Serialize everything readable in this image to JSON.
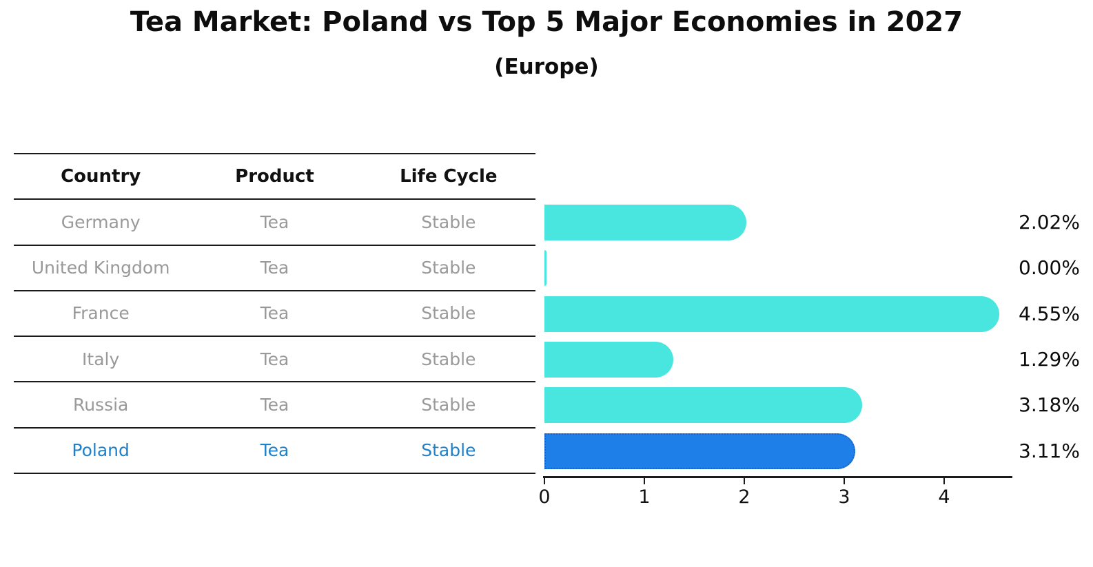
{
  "title": "Tea Market: Poland vs Top 5 Major Economies in 2027",
  "subtitle": "(Europe)",
  "table": {
    "headers": [
      "Country",
      "Product",
      "Life Cycle"
    ],
    "rows": [
      {
        "country": "Germany",
        "product": "Tea",
        "life_cycle": "Stable",
        "highlighted": false
      },
      {
        "country": "United Kingdom",
        "product": "Tea",
        "life_cycle": "Stable",
        "highlighted": false
      },
      {
        "country": "France",
        "product": "Tea",
        "life_cycle": "Stable",
        "highlighted": false
      },
      {
        "country": "Italy",
        "product": "Tea",
        "life_cycle": "Stable",
        "highlighted": false
      },
      {
        "country": "Russia",
        "product": "Tea",
        "life_cycle": "Stable",
        "highlighted": false
      },
      {
        "country": "Poland",
        "product": "Tea",
        "life_cycle": "Stable",
        "highlighted": true
      }
    ]
  },
  "chart_data": {
    "type": "bar",
    "orientation": "horizontal",
    "title": "Tea Market: Poland vs Top 5 Major Economies in 2027",
    "subtitle": "(Europe)",
    "categories": [
      "Germany",
      "United Kingdom",
      "France",
      "Italy",
      "Russia",
      "Poland"
    ],
    "values": [
      2.02,
      0.0,
      4.55,
      1.29,
      3.18,
      3.11
    ],
    "value_labels": [
      "2.02%",
      "0.00%",
      "4.55%",
      "1.29%",
      "3.18%",
      "3.11%"
    ],
    "x_ticks": [
      0,
      1,
      2,
      3,
      4
    ],
    "xlim": [
      0,
      4.7
    ],
    "grid": false,
    "legend": false,
    "highlight_index": 5,
    "bar_color": "#48E6DE",
    "highlight_bar_color": "#1E7FE8",
    "highlight_bar_edge_color": "#1A5FC8",
    "highlight_text_color": "#2080C8",
    "row_text_color": "#999999",
    "header_text_color": "#111111"
  }
}
